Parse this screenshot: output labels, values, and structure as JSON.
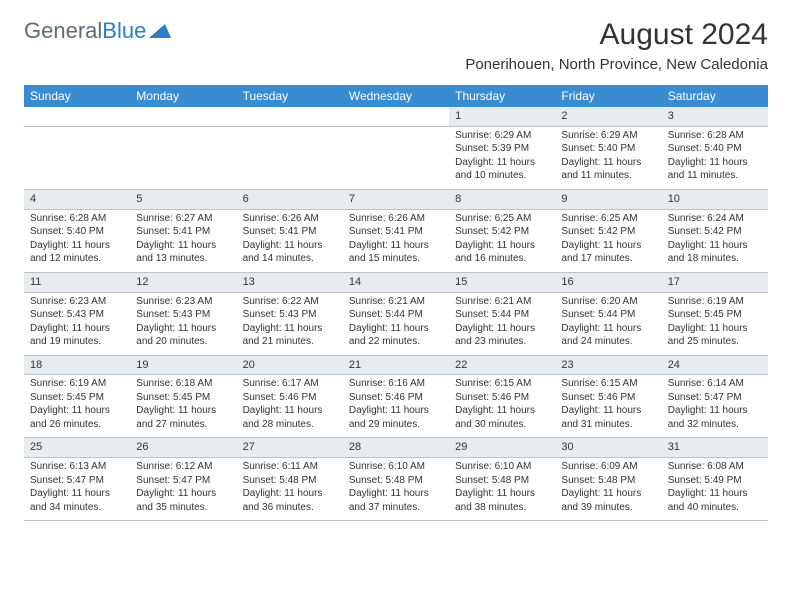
{
  "logo": {
    "text1": "General",
    "text2": "Blue",
    "color1": "#5f6b73",
    "color2": "#2d7ec4"
  },
  "title": "August 2024",
  "location": "Ponerihouen, North Province, New Caledonia",
  "colors": {
    "header_bg": "#3a8cd0",
    "header_text": "#ffffff",
    "daynum_bg": "#e8ecef",
    "border": "#b8c4cc",
    "text": "#333333",
    "background": "#ffffff"
  },
  "fonts": {
    "title_size": 30,
    "location_size": 15,
    "th_size": 12,
    "daynum_size": 11,
    "body_size": 10
  },
  "weekdays": [
    "Sunday",
    "Monday",
    "Tuesday",
    "Wednesday",
    "Thursday",
    "Friday",
    "Saturday"
  ],
  "weeks": [
    [
      null,
      null,
      null,
      null,
      {
        "day": "1",
        "sunrise": "Sunrise: 6:29 AM",
        "sunset": "Sunset: 5:39 PM",
        "daylight1": "Daylight: 11 hours",
        "daylight2": "and 10 minutes."
      },
      {
        "day": "2",
        "sunrise": "Sunrise: 6:29 AM",
        "sunset": "Sunset: 5:40 PM",
        "daylight1": "Daylight: 11 hours",
        "daylight2": "and 11 minutes."
      },
      {
        "day": "3",
        "sunrise": "Sunrise: 6:28 AM",
        "sunset": "Sunset: 5:40 PM",
        "daylight1": "Daylight: 11 hours",
        "daylight2": "and 11 minutes."
      }
    ],
    [
      {
        "day": "4",
        "sunrise": "Sunrise: 6:28 AM",
        "sunset": "Sunset: 5:40 PM",
        "daylight1": "Daylight: 11 hours",
        "daylight2": "and 12 minutes."
      },
      {
        "day": "5",
        "sunrise": "Sunrise: 6:27 AM",
        "sunset": "Sunset: 5:41 PM",
        "daylight1": "Daylight: 11 hours",
        "daylight2": "and 13 minutes."
      },
      {
        "day": "6",
        "sunrise": "Sunrise: 6:26 AM",
        "sunset": "Sunset: 5:41 PM",
        "daylight1": "Daylight: 11 hours",
        "daylight2": "and 14 minutes."
      },
      {
        "day": "7",
        "sunrise": "Sunrise: 6:26 AM",
        "sunset": "Sunset: 5:41 PM",
        "daylight1": "Daylight: 11 hours",
        "daylight2": "and 15 minutes."
      },
      {
        "day": "8",
        "sunrise": "Sunrise: 6:25 AM",
        "sunset": "Sunset: 5:42 PM",
        "daylight1": "Daylight: 11 hours",
        "daylight2": "and 16 minutes."
      },
      {
        "day": "9",
        "sunrise": "Sunrise: 6:25 AM",
        "sunset": "Sunset: 5:42 PM",
        "daylight1": "Daylight: 11 hours",
        "daylight2": "and 17 minutes."
      },
      {
        "day": "10",
        "sunrise": "Sunrise: 6:24 AM",
        "sunset": "Sunset: 5:42 PM",
        "daylight1": "Daylight: 11 hours",
        "daylight2": "and 18 minutes."
      }
    ],
    [
      {
        "day": "11",
        "sunrise": "Sunrise: 6:23 AM",
        "sunset": "Sunset: 5:43 PM",
        "daylight1": "Daylight: 11 hours",
        "daylight2": "and 19 minutes."
      },
      {
        "day": "12",
        "sunrise": "Sunrise: 6:23 AM",
        "sunset": "Sunset: 5:43 PM",
        "daylight1": "Daylight: 11 hours",
        "daylight2": "and 20 minutes."
      },
      {
        "day": "13",
        "sunrise": "Sunrise: 6:22 AM",
        "sunset": "Sunset: 5:43 PM",
        "daylight1": "Daylight: 11 hours",
        "daylight2": "and 21 minutes."
      },
      {
        "day": "14",
        "sunrise": "Sunrise: 6:21 AM",
        "sunset": "Sunset: 5:44 PM",
        "daylight1": "Daylight: 11 hours",
        "daylight2": "and 22 minutes."
      },
      {
        "day": "15",
        "sunrise": "Sunrise: 6:21 AM",
        "sunset": "Sunset: 5:44 PM",
        "daylight1": "Daylight: 11 hours",
        "daylight2": "and 23 minutes."
      },
      {
        "day": "16",
        "sunrise": "Sunrise: 6:20 AM",
        "sunset": "Sunset: 5:44 PM",
        "daylight1": "Daylight: 11 hours",
        "daylight2": "and 24 minutes."
      },
      {
        "day": "17",
        "sunrise": "Sunrise: 6:19 AM",
        "sunset": "Sunset: 5:45 PM",
        "daylight1": "Daylight: 11 hours",
        "daylight2": "and 25 minutes."
      }
    ],
    [
      {
        "day": "18",
        "sunrise": "Sunrise: 6:19 AM",
        "sunset": "Sunset: 5:45 PM",
        "daylight1": "Daylight: 11 hours",
        "daylight2": "and 26 minutes."
      },
      {
        "day": "19",
        "sunrise": "Sunrise: 6:18 AM",
        "sunset": "Sunset: 5:45 PM",
        "daylight1": "Daylight: 11 hours",
        "daylight2": "and 27 minutes."
      },
      {
        "day": "20",
        "sunrise": "Sunrise: 6:17 AM",
        "sunset": "Sunset: 5:46 PM",
        "daylight1": "Daylight: 11 hours",
        "daylight2": "and 28 minutes."
      },
      {
        "day": "21",
        "sunrise": "Sunrise: 6:16 AM",
        "sunset": "Sunset: 5:46 PM",
        "daylight1": "Daylight: 11 hours",
        "daylight2": "and 29 minutes."
      },
      {
        "day": "22",
        "sunrise": "Sunrise: 6:15 AM",
        "sunset": "Sunset: 5:46 PM",
        "daylight1": "Daylight: 11 hours",
        "daylight2": "and 30 minutes."
      },
      {
        "day": "23",
        "sunrise": "Sunrise: 6:15 AM",
        "sunset": "Sunset: 5:46 PM",
        "daylight1": "Daylight: 11 hours",
        "daylight2": "and 31 minutes."
      },
      {
        "day": "24",
        "sunrise": "Sunrise: 6:14 AM",
        "sunset": "Sunset: 5:47 PM",
        "daylight1": "Daylight: 11 hours",
        "daylight2": "and 32 minutes."
      }
    ],
    [
      {
        "day": "25",
        "sunrise": "Sunrise: 6:13 AM",
        "sunset": "Sunset: 5:47 PM",
        "daylight1": "Daylight: 11 hours",
        "daylight2": "and 34 minutes."
      },
      {
        "day": "26",
        "sunrise": "Sunrise: 6:12 AM",
        "sunset": "Sunset: 5:47 PM",
        "daylight1": "Daylight: 11 hours",
        "daylight2": "and 35 minutes."
      },
      {
        "day": "27",
        "sunrise": "Sunrise: 6:11 AM",
        "sunset": "Sunset: 5:48 PM",
        "daylight1": "Daylight: 11 hours",
        "daylight2": "and 36 minutes."
      },
      {
        "day": "28",
        "sunrise": "Sunrise: 6:10 AM",
        "sunset": "Sunset: 5:48 PM",
        "daylight1": "Daylight: 11 hours",
        "daylight2": "and 37 minutes."
      },
      {
        "day": "29",
        "sunrise": "Sunrise: 6:10 AM",
        "sunset": "Sunset: 5:48 PM",
        "daylight1": "Daylight: 11 hours",
        "daylight2": "and 38 minutes."
      },
      {
        "day": "30",
        "sunrise": "Sunrise: 6:09 AM",
        "sunset": "Sunset: 5:48 PM",
        "daylight1": "Daylight: 11 hours",
        "daylight2": "and 39 minutes."
      },
      {
        "day": "31",
        "sunrise": "Sunrise: 6:08 AM",
        "sunset": "Sunset: 5:49 PM",
        "daylight1": "Daylight: 11 hours",
        "daylight2": "and 40 minutes."
      }
    ]
  ]
}
